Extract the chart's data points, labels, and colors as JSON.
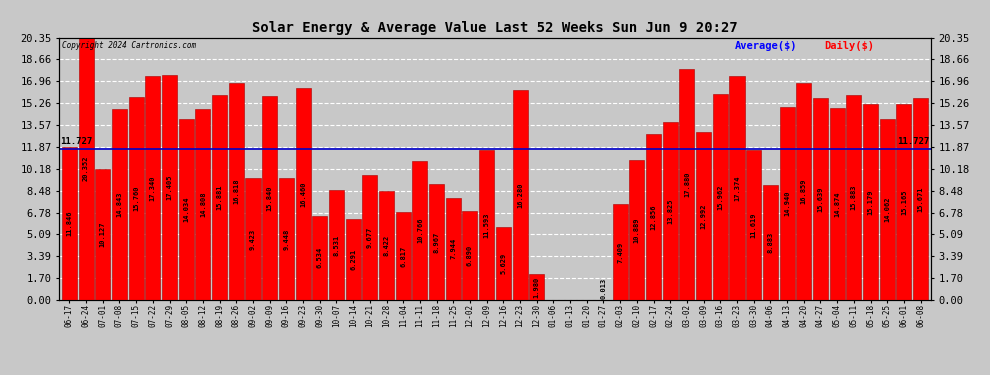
{
  "title": "Solar Energy & Average Value Last 52 Weeks Sun Jun 9 20:27",
  "copyright": "Copyright 2024 Cartronics.com",
  "average_label": "Average($)",
  "daily_label": "Daily($)",
  "average_value": 11.727,
  "ylim": [
    0,
    20.35
  ],
  "yticks": [
    0.0,
    1.7,
    3.39,
    5.09,
    6.78,
    8.48,
    10.18,
    11.87,
    13.57,
    15.26,
    16.96,
    18.66,
    20.35
  ],
  "bar_color": "#ff0000",
  "bar_edge_color": "#aa0000",
  "average_line_color": "#0000cc",
  "background_color": "#c8c8c8",
  "grid_color": "#ffffff",
  "dates": [
    "06-17",
    "06-24",
    "07-01",
    "07-08",
    "07-15",
    "07-22",
    "07-29",
    "08-05",
    "08-12",
    "08-19",
    "08-26",
    "09-02",
    "09-09",
    "09-16",
    "09-23",
    "09-30",
    "10-07",
    "10-14",
    "10-21",
    "10-28",
    "11-04",
    "11-11",
    "11-18",
    "11-25",
    "12-02",
    "12-09",
    "12-16",
    "12-23",
    "12-30",
    "01-06",
    "01-13",
    "01-20",
    "01-27",
    "02-03",
    "02-10",
    "02-17",
    "02-24",
    "03-02",
    "03-09",
    "03-16",
    "03-23",
    "03-30",
    "04-06",
    "04-13",
    "04-20",
    "04-27",
    "05-04",
    "05-11",
    "05-18",
    "05-25",
    "06-01",
    "06-08"
  ],
  "values": [
    11.846,
    20.352,
    10.127,
    14.843,
    15.76,
    17.34,
    17.405,
    14.034,
    14.808,
    15.881,
    16.818,
    9.423,
    15.84,
    9.448,
    16.46,
    6.534,
    8.531,
    6.291,
    9.677,
    8.422,
    6.817,
    10.766,
    8.967,
    7.944,
    6.89,
    11.593,
    5.629,
    16.28,
    1.98,
    0.0,
    0.0,
    0.0,
    0.013,
    7.409,
    10.889,
    12.856,
    13.825,
    17.88,
    12.992,
    15.962,
    17.374,
    11.619,
    8.883,
    14.94,
    16.859,
    15.639,
    14.874,
    15.883,
    15.179,
    14.062,
    15.165,
    15.671
  ],
  "value_fontsize": 5.0,
  "date_fontsize": 5.5,
  "ytick_fontsize": 7.5,
  "figsize": [
    9.9,
    3.75
  ],
  "dpi": 100
}
